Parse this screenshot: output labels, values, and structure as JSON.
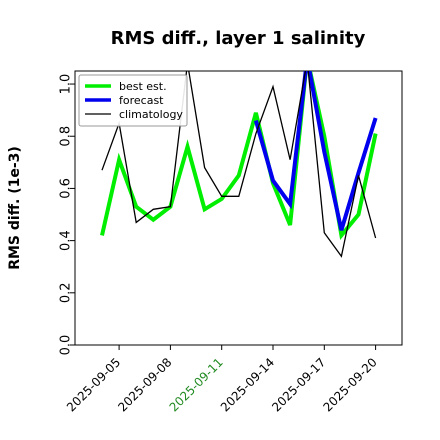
{
  "chart_data": {
    "type": "line",
    "title": "RMS diff., layer 1 salinity",
    "ylabel": "RMS diff. (1e-3)",
    "xlabel": "",
    "ylim": [
      0.0,
      1.05
    ],
    "yticks": [
      "0.0",
      "0.2",
      "0.4",
      "0.6",
      "0.8",
      "1.0"
    ],
    "ytick_values": [
      0.0,
      0.2,
      0.4,
      0.6,
      0.8,
      1.0
    ],
    "x": [
      "2025-09-04",
      "2025-09-05",
      "2025-09-06",
      "2025-09-07",
      "2025-09-08",
      "2025-09-09",
      "2025-09-10",
      "2025-09-11",
      "2025-09-12",
      "2025-09-13",
      "2025-09-14",
      "2025-09-15",
      "2025-09-16",
      "2025-09-17",
      "2025-09-18",
      "2025-09-19",
      "2025-09-20"
    ],
    "xticks": [
      {
        "label": "2025-09-05",
        "color": "#000000"
      },
      {
        "label": "2025-09-08",
        "color": "#000000"
      },
      {
        "label": "2025-09-11",
        "color": "#228B22"
      },
      {
        "label": "2025-09-14",
        "color": "#000000"
      },
      {
        "label": "2025-09-17",
        "color": "#000000"
      },
      {
        "label": "2025-09-20",
        "color": "#000000"
      }
    ],
    "xtick_index": [
      1,
      4,
      7,
      10,
      13,
      16
    ],
    "series": [
      {
        "name": "best est.",
        "color": "#00ee00",
        "width": 4,
        "values": [
          0.42,
          0.71,
          0.53,
          0.48,
          0.53,
          0.76,
          0.52,
          0.56,
          0.65,
          0.89,
          0.62,
          0.46,
          1.1,
          0.8,
          0.42,
          0.5,
          0.81
        ]
      },
      {
        "name": "forecast",
        "color": "#0000ee",
        "width": 4,
        "values": [
          null,
          null,
          null,
          null,
          null,
          null,
          null,
          null,
          null,
          0.86,
          0.63,
          0.54,
          1.1,
          0.74,
          0.44,
          0.66,
          0.87
        ]
      },
      {
        "name": "climatology",
        "color": "#000000",
        "width": 1.3,
        "values": [
          0.67,
          0.85,
          0.47,
          0.52,
          0.53,
          1.08,
          0.68,
          0.57,
          0.57,
          0.81,
          0.99,
          0.71,
          1.09,
          0.43,
          0.34,
          0.65,
          0.41
        ]
      }
    ],
    "legend_position": "top-left",
    "grid": false
  }
}
